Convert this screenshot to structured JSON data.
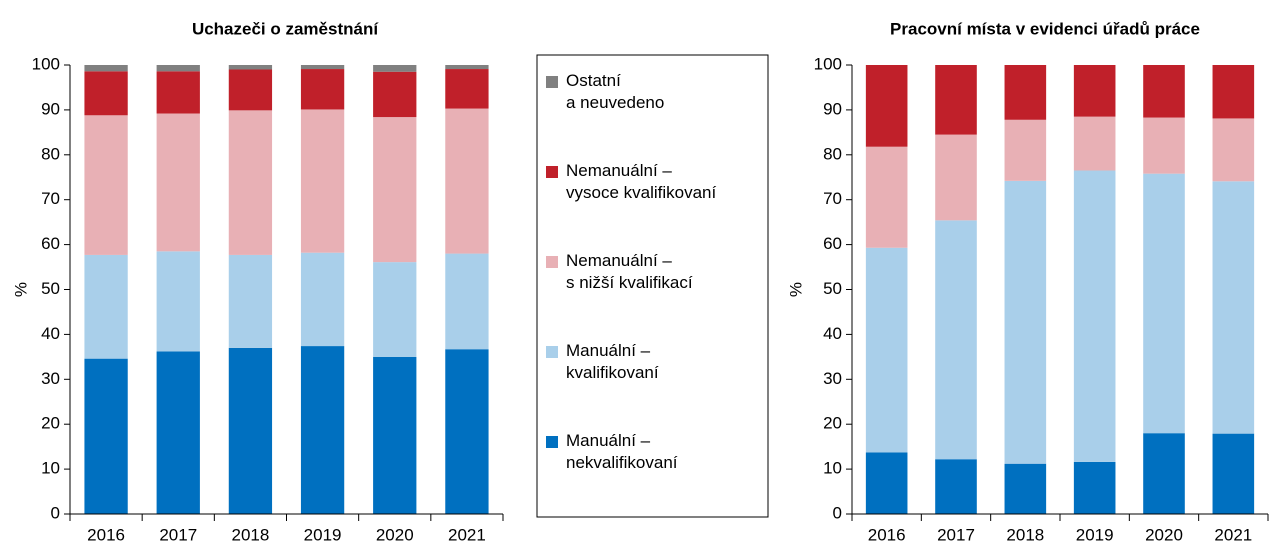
{
  "charts": [
    {
      "type": "stacked_bar",
      "title": "Uchazeči o zaměstnání",
      "ylabel": "%",
      "categories": [
        "2016",
        "2017",
        "2018",
        "2019",
        "2020",
        "2021"
      ],
      "ylim": [
        0,
        100
      ],
      "yticks": [
        0,
        10,
        20,
        30,
        40,
        50,
        60,
        70,
        80,
        90,
        100
      ],
      "series": [
        {
          "name": "Manuální –\nnekvalifikovaní",
          "color": "#0070c0",
          "values": [
            34.6,
            36.2,
            37.0,
            37.4,
            35.0,
            36.7
          ]
        },
        {
          "name": "Manuální –\nkvalifikovaní",
          "color": "#a9cfea",
          "values": [
            23.1,
            22.3,
            20.7,
            20.8,
            21.1,
            21.3
          ]
        },
        {
          "name": "Nemanuální –\ns nižší kvalifikací",
          "color": "#e8b0b5",
          "values": [
            31.1,
            30.7,
            32.2,
            31.9,
            32.3,
            32.3
          ]
        },
        {
          "name": "Nemanuální –\nvysoce kvalifikovaní",
          "color": "#c0202a",
          "values": [
            9.8,
            9.4,
            9.1,
            9.0,
            10.1,
            8.8
          ]
        },
        {
          "name": "Ostatní\na neuvedeno",
          "color": "#808080",
          "values": [
            1.4,
            1.4,
            1.0,
            0.9,
            1.5,
            0.9
          ]
        }
      ]
    },
    {
      "type": "stacked_bar",
      "title": "Pracovní místa v evidenci úřadů práce",
      "ylabel": "%",
      "categories": [
        "2016",
        "2017",
        "2018",
        "2019",
        "2020",
        "2021"
      ],
      "ylim": [
        0,
        100
      ],
      "yticks": [
        0,
        10,
        20,
        30,
        40,
        50,
        60,
        70,
        80,
        90,
        100
      ],
      "series": [
        {
          "values": [
            13.7,
            12.2,
            11.2,
            11.6,
            18.0,
            17.9
          ]
        },
        {
          "values": [
            45.6,
            53.2,
            63.0,
            64.9,
            57.8,
            56.2
          ]
        },
        {
          "values": [
            22.5,
            19.1,
            13.6,
            12.0,
            12.5,
            14.0
          ]
        },
        {
          "values": [
            18.2,
            15.5,
            12.2,
            11.5,
            11.7,
            11.9
          ]
        }
      ]
    }
  ]
}
